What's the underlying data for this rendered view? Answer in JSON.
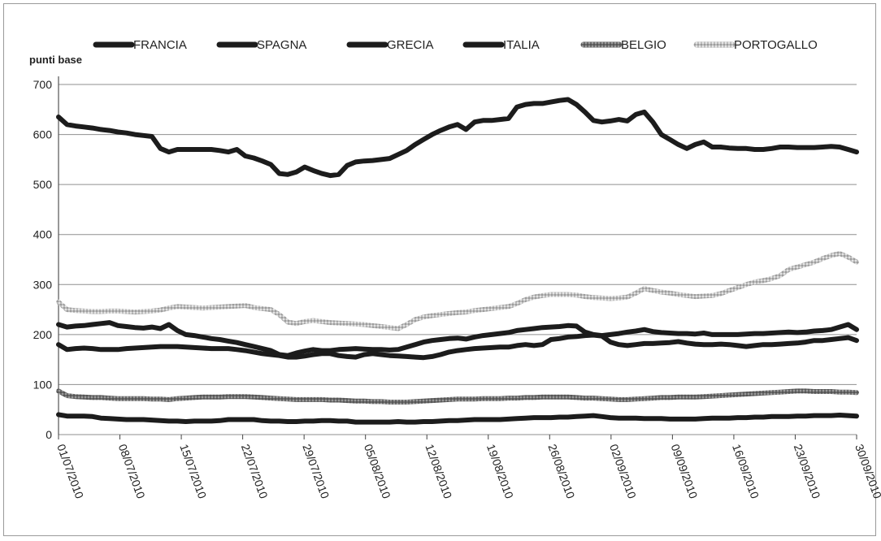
{
  "chart_data": {
    "type": "line",
    "ylabel": "punti base",
    "ylim": [
      0,
      700
    ],
    "yticks": [
      0,
      100,
      200,
      300,
      400,
      500,
      600,
      700
    ],
    "x_tick_labels": [
      "01/07/2010",
      "08/07/2010",
      "15/07/2010",
      "22/07/2010",
      "29/07/2010",
      "05/08/2010",
      "12/08/2010",
      "19/08/2010",
      "26/08/2010",
      "02/09/2010",
      "09/09/2010",
      "16/09/2010",
      "23/09/2010",
      "30/09/2010"
    ],
    "grid": "horizontal",
    "legend_position": "top",
    "series": [
      {
        "name": "FRANCIA",
        "color": "#1c1c1c",
        "style": "solid",
        "values": [
          40,
          37,
          37,
          37,
          36,
          33,
          32,
          31,
          30,
          30,
          30,
          29,
          28,
          27,
          27,
          26,
          27,
          27,
          27,
          28,
          30,
          30,
          30,
          30,
          28,
          27,
          27,
          26,
          26,
          27,
          27,
          28,
          28,
          27,
          27,
          25,
          25,
          25,
          25,
          25,
          26,
          25,
          25,
          26,
          26,
          27,
          28,
          28,
          29,
          30,
          30,
          30,
          30,
          31,
          32,
          33,
          34,
          34,
          34,
          35,
          35,
          36,
          37,
          38,
          36,
          34,
          33,
          33,
          33,
          32,
          32,
          32,
          31,
          31,
          31,
          31,
          32,
          33,
          33,
          33,
          34,
          34,
          35,
          35,
          36,
          36,
          36,
          37,
          37,
          38,
          38,
          38,
          39,
          38,
          37
        ]
      },
      {
        "name": "SPAGNA",
        "color": "#1c1c1c",
        "style": "solid",
        "values": [
          180,
          170,
          172,
          173,
          172,
          170,
          170,
          170,
          172,
          173,
          174,
          175,
          176,
          176,
          176,
          175,
          174,
          173,
          172,
          172,
          172,
          170,
          168,
          165,
          162,
          160,
          158,
          155,
          155,
          157,
          160,
          162,
          162,
          158,
          156,
          155,
          160,
          162,
          160,
          158,
          157,
          156,
          155,
          154,
          156,
          160,
          165,
          168,
          170,
          172,
          173,
          174,
          175,
          175,
          178,
          180,
          178,
          180,
          190,
          192,
          195,
          196,
          198,
          199,
          197,
          185,
          180,
          178,
          180,
          182,
          182,
          183,
          184,
          186,
          183,
          181,
          180,
          180,
          181,
          180,
          178,
          176,
          178,
          180,
          180,
          181,
          182,
          183,
          185,
          188,
          188,
          190,
          192,
          194,
          188
        ]
      },
      {
        "name": "GRECIA",
        "color": "#1c1c1c",
        "style": "solid",
        "values": [
          635,
          620,
          617,
          615,
          613,
          610,
          608,
          605,
          603,
          600,
          598,
          596,
          572,
          565,
          570,
          570,
          570,
          570,
          570,
          568,
          565,
          570,
          557,
          553,
          547,
          540,
          522,
          520,
          525,
          535,
          528,
          522,
          518,
          520,
          538,
          545,
          547,
          548,
          550,
          552,
          560,
          568,
          580,
          590,
          600,
          608,
          615,
          620,
          610,
          625,
          628,
          628,
          630,
          632,
          655,
          660,
          662,
          662,
          665,
          668,
          670,
          660,
          645,
          628,
          625,
          627,
          630,
          627,
          640,
          645,
          625,
          600,
          590,
          580,
          572,
          580,
          585,
          575,
          575,
          573,
          572,
          572,
          570,
          570,
          572,
          575,
          575,
          574,
          574,
          574,
          575,
          576,
          575,
          570,
          565
        ]
      },
      {
        "name": "ITALIA",
        "color": "#1c1c1c",
        "style": "solid",
        "values": [
          220,
          215,
          217,
          218,
          220,
          222,
          224,
          218,
          216,
          214,
          213,
          215,
          212,
          220,
          208,
          200,
          198,
          195,
          192,
          190,
          187,
          184,
          180,
          176,
          172,
          168,
          160,
          158,
          163,
          167,
          170,
          168,
          168,
          170,
          171,
          172,
          171,
          170,
          170,
          169,
          170,
          175,
          180,
          185,
          188,
          190,
          192,
          193,
          191,
          195,
          198,
          200,
          202,
          204,
          208,
          210,
          212,
          214,
          215,
          216,
          218,
          217,
          205,
          200,
          198,
          200,
          202,
          205,
          207,
          210,
          206,
          204,
          203,
          202,
          202,
          201,
          203,
          200,
          200,
          200,
          200,
          201,
          202,
          202,
          203,
          204,
          205,
          204,
          205,
          207,
          208,
          210,
          215,
          220,
          210
        ]
      },
      {
        "name": "BELGIO",
        "color": "#707070",
        "style": "textured",
        "values": [
          87,
          78,
          76,
          75,
          74,
          74,
          73,
          72,
          72,
          72,
          72,
          71,
          71,
          70,
          72,
          73,
          74,
          75,
          75,
          75,
          76,
          76,
          76,
          75,
          74,
          73,
          72,
          71,
          70,
          70,
          70,
          70,
          69,
          69,
          68,
          67,
          67,
          66,
          66,
          65,
          65,
          65,
          66,
          67,
          68,
          69,
          70,
          71,
          71,
          71,
          72,
          72,
          72,
          73,
          73,
          74,
          74,
          75,
          75,
          75,
          75,
          74,
          73,
          73,
          72,
          71,
          70,
          70,
          71,
          72,
          73,
          74,
          74,
          75,
          75,
          75,
          76,
          77,
          78,
          79,
          80,
          81,
          82,
          83,
          84,
          85,
          86,
          87,
          87,
          86,
          86,
          86,
          85,
          85,
          84
        ]
      },
      {
        "name": "PORTOGALLO",
        "color": "#a8a8a8",
        "style": "textured",
        "values": [
          265,
          250,
          248,
          247,
          246,
          246,
          247,
          247,
          246,
          245,
          246,
          247,
          249,
          253,
          256,
          255,
          254,
          253,
          254,
          255,
          256,
          257,
          258,
          254,
          252,
          250,
          240,
          225,
          222,
          226,
          228,
          226,
          224,
          223,
          222,
          221,
          220,
          218,
          216,
          214,
          212,
          220,
          230,
          235,
          238,
          240,
          242,
          244,
          245,
          248,
          250,
          252,
          254,
          256,
          262,
          270,
          275,
          278,
          280,
          280,
          280,
          279,
          276,
          274,
          273,
          272,
          273,
          275,
          283,
          292,
          288,
          285,
          283,
          280,
          278,
          276,
          277,
          278,
          282,
          288,
          294,
          300,
          305,
          308,
          312,
          318,
          330,
          335,
          340,
          345,
          352,
          358,
          362,
          355,
          345
        ]
      }
    ]
  }
}
